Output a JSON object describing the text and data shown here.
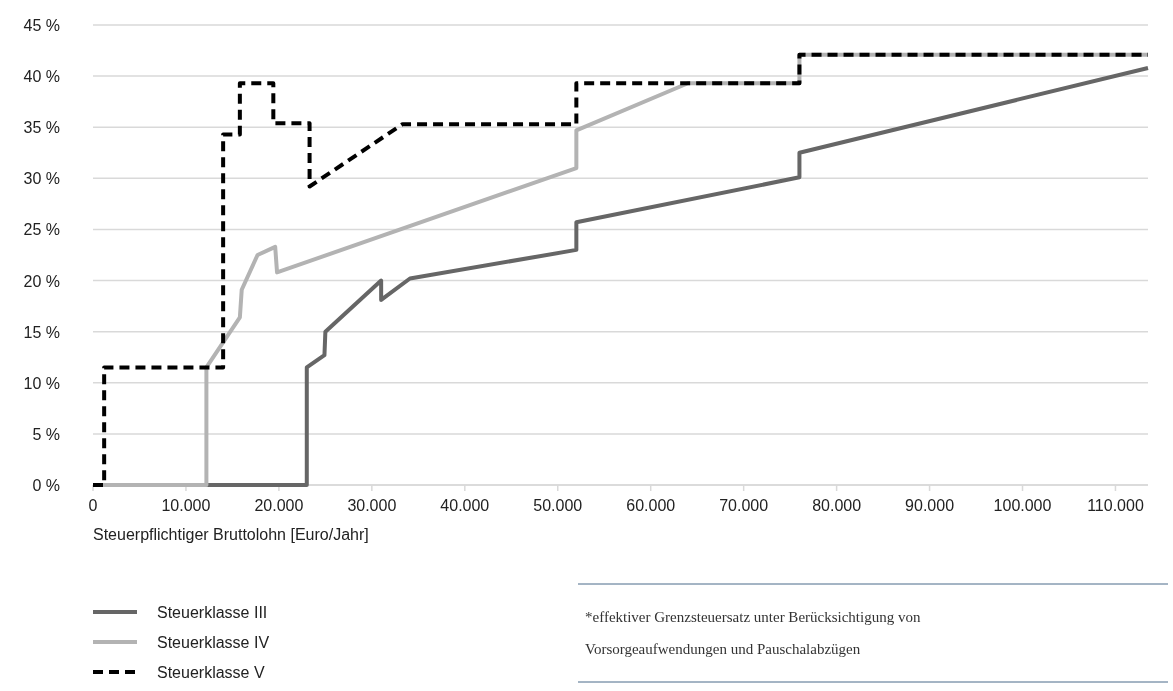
{
  "chart_data": {
    "type": "line",
    "xlabel": "Steuerpflichtiger Bruttolohn [Euro/Jahr]",
    "xlim": [
      0,
      113500
    ],
    "ylim": [
      0,
      45
    ],
    "xticks": [
      {
        "value": 0,
        "label": "0"
      },
      {
        "value": 10000,
        "label": "10.000"
      },
      {
        "value": 20000,
        "label": "20.000"
      },
      {
        "value": 30000,
        "label": "30.000"
      },
      {
        "value": 40000,
        "label": "40.000"
      },
      {
        "value": 50000,
        "label": "50.000"
      },
      {
        "value": 60000,
        "label": "60.000"
      },
      {
        "value": 70000,
        "label": "70.000"
      },
      {
        "value": 80000,
        "label": "80.000"
      },
      {
        "value": 90000,
        "label": "90.000"
      },
      {
        "value": 100000,
        "label": "100.000"
      },
      {
        "value": 110000,
        "label": "110.000"
      }
    ],
    "yticks": [
      {
        "value": 0,
        "label": "0 %"
      },
      {
        "value": 5,
        "label": "5 %"
      },
      {
        "value": 10,
        "label": "10 %"
      },
      {
        "value": 15,
        "label": "15 %"
      },
      {
        "value": 20,
        "label": "20 %"
      },
      {
        "value": 25,
        "label": "25 %"
      },
      {
        "value": 30,
        "label": "30 %"
      },
      {
        "value": 35,
        "label": "35 %"
      },
      {
        "value": 40,
        "label": "40 %"
      },
      {
        "value": 45,
        "label": "45 %"
      }
    ],
    "grid": "y",
    "legend": "bottom left",
    "series": [
      {
        "name": "Steuerklasse III",
        "color": "#666666",
        "line_style": "solid",
        "x": [
          0,
          23000,
          23000,
          24900,
          25000,
          31000,
          31000,
          34100,
          52000,
          52000,
          76000,
          76000,
          113500
        ],
        "values": [
          0,
          0,
          11.5,
          12.7,
          15.0,
          20.0,
          18.1,
          20.2,
          23.0,
          25.7,
          30.1,
          32.5,
          40.8
        ]
      },
      {
        "name": "Steuerklasse IV",
        "color": "#b3b3b3",
        "line_style": "solid",
        "x": [
          0,
          12200,
          12200,
          15800,
          16000,
          17700,
          19600,
          19800,
          52000,
          52000,
          64000,
          76000,
          76000,
          113500
        ],
        "values": [
          0,
          0,
          11.5,
          16.4,
          19.1,
          22.5,
          23.3,
          20.8,
          31.0,
          34.7,
          39.3,
          39.3,
          42.1,
          42.1
        ]
      },
      {
        "name": "Steuerklasse V",
        "color": "#000000",
        "line_style": "dashed",
        "x": [
          0,
          1200,
          1200,
          14000,
          14000,
          15800,
          15800,
          19400,
          19400,
          23300,
          23300,
          33300,
          52000,
          52000,
          76000,
          76000,
          113500
        ],
        "values": [
          0,
          0,
          11.5,
          11.5,
          34.3,
          34.3,
          39.3,
          39.3,
          35.4,
          35.4,
          29.2,
          35.3,
          35.3,
          39.3,
          39.3,
          42.1,
          42.1
        ]
      }
    ],
    "annotations": [
      "*effektiver Grenzsteuersatz unter Berücksichtigung von Vorsorgeaufwendungen und Pauschalabzügen"
    ]
  }
}
